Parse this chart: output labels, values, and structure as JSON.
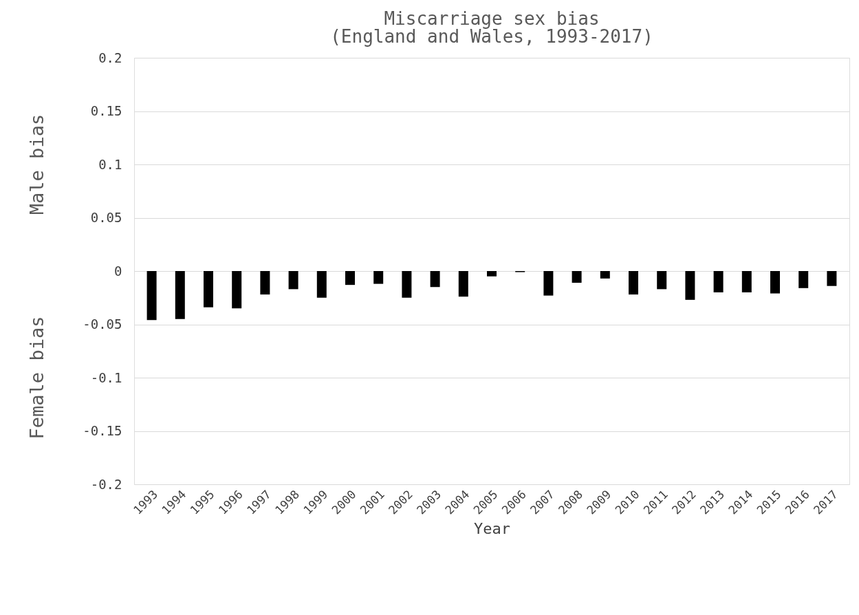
{
  "chart_data": {
    "type": "bar",
    "title": "Miscarriage sex bias",
    "subtitle": "(England and Wales, 1993-2017)",
    "xlabel": "Year",
    "annotations": [
      "Male bias",
      "Female bias"
    ],
    "categories": [
      "1993",
      "1994",
      "1995",
      "1996",
      "1997",
      "1998",
      "1999",
      "2000",
      "2001",
      "2002",
      "2003",
      "2004",
      "2005",
      "2006",
      "2007",
      "2008",
      "2009",
      "2010",
      "2011",
      "2012",
      "2013",
      "2014",
      "2015",
      "2016",
      "2017"
    ],
    "values": [
      -0.046,
      -0.045,
      -0.034,
      -0.035,
      -0.022,
      -0.017,
      -0.025,
      -0.013,
      -0.012,
      -0.025,
      -0.015,
      -0.024,
      -0.005,
      -0.001,
      -0.023,
      -0.011,
      -0.007,
      -0.022,
      -0.017,
      -0.027,
      -0.02,
      -0.02,
      -0.021,
      -0.016,
      -0.014
    ],
    "color": "#000000",
    "ylim": [
      -0.2,
      0.2
    ],
    "yticks": [
      -0.2,
      -0.15,
      -0.1,
      -0.05,
      0,
      0.05,
      0.1,
      0.15,
      0.2
    ],
    "grid": "y"
  }
}
